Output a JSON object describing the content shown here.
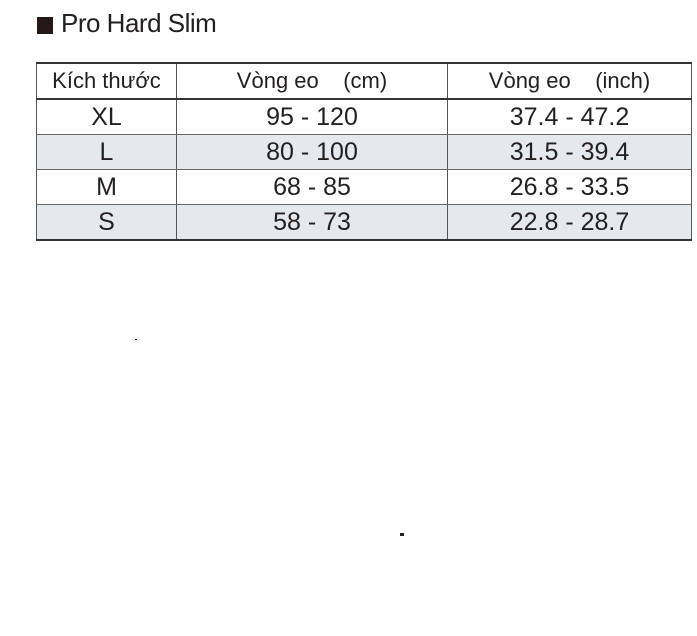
{
  "title": "Pro Hard Slim",
  "table": {
    "headers": [
      "Kích thước",
      "Vòng eo    (cm)",
      "Vòng eo    (inch)"
    ],
    "rows": [
      [
        "XL",
        "95 - 120",
        "37.4 - 47.2"
      ],
      [
        "L",
        "80 - 100",
        "31.5 - 39.4"
      ],
      [
        "M",
        "68 - 85",
        "26.8 - 33.5"
      ],
      [
        "S",
        "58 - 73",
        "22.8 - 28.7"
      ]
    ]
  }
}
